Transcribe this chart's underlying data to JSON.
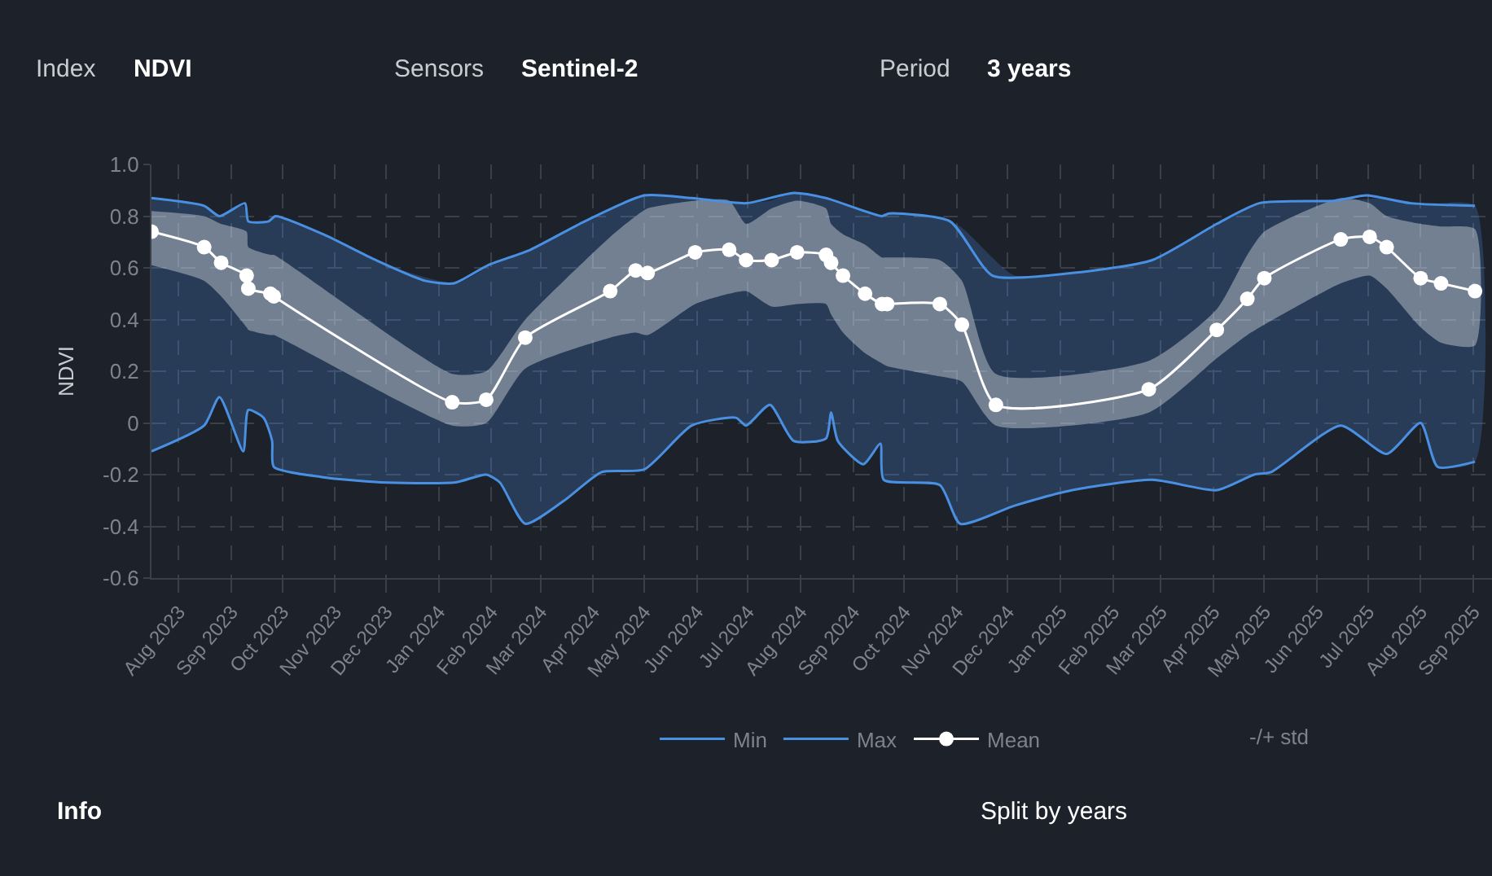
{
  "chart_data": {
    "type": "line",
    "ylabel": "NDVI",
    "xlim": [
      "2023-07-16",
      "2025-09-12"
    ],
    "xticks": [
      {
        "value": "2023-08-01",
        "label": "Aug 2023"
      },
      {
        "value": "2023-09-01",
        "label": "Sep 2023"
      },
      {
        "value": "2023-10-01",
        "label": "Oct 2023"
      },
      {
        "value": "2023-11-01",
        "label": "Nov 2023"
      },
      {
        "value": "2023-12-01",
        "label": "Dec 2023"
      },
      {
        "value": "2024-01-01",
        "label": "Jan 2024"
      },
      {
        "value": "2024-02-01",
        "label": "Feb 2024"
      },
      {
        "value": "2024-03-01",
        "label": "Mar 2024"
      },
      {
        "value": "2024-04-01",
        "label": "Apr 2024"
      },
      {
        "value": "2024-05-01",
        "label": "May 2024"
      },
      {
        "value": "2024-06-01",
        "label": "Jun 2024"
      },
      {
        "value": "2024-07-01",
        "label": "Jul 2024"
      },
      {
        "value": "2024-08-01",
        "label": "Aug 2024"
      },
      {
        "value": "2024-09-01",
        "label": "Sep 2024"
      },
      {
        "value": "2024-10-01",
        "label": "Oct 2024"
      },
      {
        "value": "2024-11-01",
        "label": "Nov 2024"
      },
      {
        "value": "2024-12-01",
        "label": "Dec 2024"
      },
      {
        "value": "2025-01-01",
        "label": "Jan 2025"
      },
      {
        "value": "2025-02-01",
        "label": "Feb 2025"
      },
      {
        "value": "2025-03-01",
        "label": "Mar 2025"
      },
      {
        "value": "2025-04-01",
        "label": "Apr 2025"
      },
      {
        "value": "2025-05-01",
        "label": "May 2025"
      },
      {
        "value": "2025-06-01",
        "label": "Jun 2025"
      },
      {
        "value": "2025-07-01",
        "label": "Jul 2025"
      },
      {
        "value": "2025-08-01",
        "label": "Aug 2025"
      },
      {
        "value": "2025-09-01",
        "label": "Sep 2025"
      }
    ],
    "ylim": [
      -0.6,
      1.0
    ],
    "yticks": [
      -0.6,
      -0.4,
      -0.2,
      0,
      0.2,
      0.4,
      0.6,
      0.8,
      {
        "value": 1.0,
        "label": "1.0"
      }
    ],
    "grid": true,
    "legend": "bottom",
    "line_style": "solid",
    "series": [
      {
        "name": "Min",
        "color": "#4a90e2",
        "x": [
          "2023-07-16",
          "2023-08-16",
          "2023-08-25",
          "2023-09-08",
          "2023-09-11",
          "2023-09-20",
          "2023-09-25",
          "2023-09-26",
          "2023-10-25",
          "2023-11-28",
          "2024-01-11",
          "2024-01-29",
          "2024-02-06",
          "2024-02-21",
          "2024-03-15",
          "2024-04-06",
          "2024-05-01",
          "2024-05-29",
          "2024-06-24",
          "2024-06-30",
          "2024-07-14",
          "2024-07-28",
          "2024-08-16",
          "2024-08-19",
          "2024-08-23",
          "2024-09-07",
          "2024-09-17",
          "2024-09-19",
          "2024-10-22",
          "2024-11-03",
          "2024-12-05",
          "2025-01-08",
          "2025-02-24",
          "2025-04-03",
          "2025-04-25",
          "2025-05-05",
          "2025-06-15",
          "2025-07-12",
          "2025-08-01",
          "2025-08-11",
          "2025-09-02"
        ],
        "values": [
          -0.11,
          -0.01,
          0.1,
          -0.11,
          0.05,
          0.02,
          -0.07,
          -0.17,
          -0.21,
          -0.23,
          -0.23,
          -0.2,
          -0.23,
          -0.39,
          -0.3,
          -0.19,
          -0.18,
          -0.01,
          0.02,
          -0.01,
          0.07,
          -0.07,
          -0.06,
          0.04,
          -0.07,
          -0.16,
          -0.08,
          -0.22,
          -0.24,
          -0.39,
          -0.32,
          -0.26,
          -0.22,
          -0.26,
          -0.2,
          -0.19,
          -0.01,
          -0.12,
          0.0,
          -0.17,
          -0.15
        ],
        "lower": [
          -0.11,
          -0.01,
          0.1,
          -0.11,
          0.05,
          0.02,
          -0.07,
          -0.17,
          -0.21,
          -0.23,
          -0.23,
          -0.2,
          -0.23,
          -0.39,
          -0.3,
          -0.19,
          -0.18,
          -0.01,
          0.02,
          -0.01,
          0.07,
          -0.07,
          -0.06,
          0.04,
          -0.07,
          -0.16,
          -0.08,
          -0.22,
          -0.24,
          -0.39,
          -0.32,
          -0.26,
          -0.22,
          -0.26,
          -0.2,
          -0.19,
          -0.01,
          -0.12,
          0.0,
          -0.17,
          -0.15
        ],
        "upper": [
          0.87,
          0.84,
          0.8,
          0.84,
          0.78,
          0.78,
          0.79,
          0.8,
          0.73,
          0.62,
          0.54,
          0.6,
          0.63,
          0.66,
          0.74,
          0.81,
          0.88,
          0.87,
          0.85,
          0.85,
          0.86,
          0.89,
          0.87,
          0.86,
          0.85,
          0.82,
          0.8,
          0.81,
          0.79,
          0.76,
          0.57,
          0.58,
          0.63,
          0.77,
          0.84,
          0.85,
          0.86,
          0.87,
          0.85,
          0.85,
          0.84
        ]
      },
      {
        "name": "Max",
        "color": "#4a90e2",
        "x": [
          "2023-07-16",
          "2023-08-16",
          "2023-08-25",
          "2023-09-09",
          "2023-09-11",
          "2023-09-23",
          "2023-09-27",
          "2023-10-25",
          "2023-11-25",
          "2023-12-24",
          "2024-01-10",
          "2024-01-30",
          "2024-02-24",
          "2024-03-27",
          "2024-05-01",
          "2024-05-29",
          "2024-06-30",
          "2024-07-28",
          "2024-08-16",
          "2024-09-18",
          "2024-09-22",
          "2024-10-28",
          "2024-11-22",
          "2025-01-08",
          "2025-02-24",
          "2025-04-03",
          "2025-04-28",
          "2025-06-12",
          "2025-06-30",
          "2025-07-26",
          "2025-09-02"
        ],
        "values": [
          0.87,
          0.84,
          0.8,
          0.85,
          0.78,
          0.78,
          0.8,
          0.73,
          0.63,
          0.55,
          0.54,
          0.61,
          0.67,
          0.78,
          0.88,
          0.87,
          0.85,
          0.89,
          0.87,
          0.8,
          0.81,
          0.78,
          0.57,
          0.58,
          0.63,
          0.77,
          0.85,
          0.86,
          0.88,
          0.85,
          0.84
        ]
      },
      {
        "name": "Mean",
        "marker": "circle",
        "color": "#ffffff",
        "x": [
          "2023-07-16",
          "2023-08-16",
          "2023-08-26",
          "2023-09-10",
          "2023-09-11",
          "2023-09-24",
          "2023-09-26",
          "2024-01-09",
          "2024-01-29",
          "2024-02-21",
          "2024-04-11",
          "2024-04-26",
          "2024-05-03",
          "2024-05-31",
          "2024-06-20",
          "2024-06-30",
          "2024-07-15",
          "2024-07-30",
          "2024-08-16",
          "2024-08-19",
          "2024-08-26",
          "2024-09-08",
          "2024-09-18",
          "2024-09-21",
          "2024-10-22",
          "2024-11-04",
          "2024-11-24",
          "2025-02-22",
          "2025-04-03",
          "2025-04-21",
          "2025-05-01",
          "2025-06-15",
          "2025-07-02",
          "2025-07-12",
          "2025-08-01",
          "2025-08-13",
          "2025-09-02"
        ],
        "values": [
          0.74,
          0.68,
          0.62,
          0.57,
          0.52,
          0.5,
          0.49,
          0.08,
          0.09,
          0.33,
          0.51,
          0.59,
          0.58,
          0.66,
          0.67,
          0.63,
          0.63,
          0.66,
          0.65,
          0.62,
          0.57,
          0.5,
          0.46,
          0.46,
          0.46,
          0.38,
          0.07,
          0.13,
          0.36,
          0.48,
          0.56,
          0.71,
          0.72,
          0.68,
          0.56,
          0.54,
          0.51
        ],
        "upper": [
          0.82,
          0.8,
          0.77,
          0.74,
          0.68,
          0.65,
          0.65,
          0.19,
          0.2,
          0.4,
          0.72,
          0.8,
          0.83,
          0.86,
          0.86,
          0.77,
          0.83,
          0.86,
          0.83,
          0.77,
          0.73,
          0.69,
          0.64,
          0.64,
          0.63,
          0.55,
          0.19,
          0.24,
          0.44,
          0.65,
          0.74,
          0.87,
          0.85,
          0.8,
          0.77,
          0.76,
          0.75
        ],
        "lower": [
          0.61,
          0.55,
          0.49,
          0.37,
          0.36,
          0.34,
          0.34,
          -0.01,
          0.0,
          0.21,
          0.33,
          0.35,
          0.34,
          0.46,
          0.5,
          0.51,
          0.45,
          0.46,
          0.46,
          0.42,
          0.35,
          0.27,
          0.23,
          0.22,
          0.18,
          0.16,
          -0.01,
          0.04,
          0.25,
          0.34,
          0.38,
          0.54,
          0.57,
          0.52,
          0.37,
          0.31,
          0.3
        ]
      }
    ],
    "annotations": [
      "Index",
      "NDVI",
      "Sensors",
      "Sentinel-2",
      "Period",
      "3 years",
      "Info",
      "Split by years",
      "-/+ std"
    ]
  }
}
